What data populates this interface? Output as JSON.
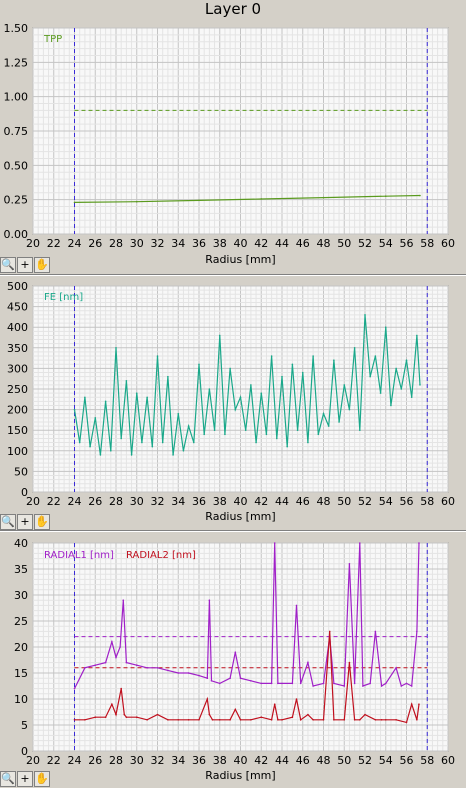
{
  "window": {
    "title": "Layer 0"
  },
  "toolbar": {
    "zoom_icon": "zoom-icon",
    "crosshair_icon": "crosshair-icon",
    "pan_icon": "hand-pan-icon",
    "crosshair_glyph": "+"
  },
  "colors": {
    "tpp": "#5a9a1e",
    "fe": "#1aa88a",
    "radial1": "#a020c8",
    "radial2": "#c0101e",
    "marker": "#3a2ad8",
    "grid_minor": "#e4e4e4",
    "grid_major": "#c4c4c4"
  },
  "chart_data": [
    {
      "type": "line",
      "xlabel": "Radius [mm]",
      "xlim": [
        20,
        60
      ],
      "ylim": [
        0,
        1.5
      ],
      "x_ticks": [
        20,
        22,
        24,
        26,
        28,
        30,
        32,
        34,
        36,
        38,
        40,
        42,
        44,
        46,
        48,
        50,
        52,
        54,
        56,
        58,
        60
      ],
      "y_ticks": [
        "0.00",
        "0.25",
        "0.50",
        "0.75",
        "1.00",
        "1.25",
        "1.50"
      ],
      "vertical_markers": [
        24,
        58
      ],
      "threshold": 0.9,
      "series": [
        {
          "name": "TPP",
          "x": [
            24,
            30,
            36,
            42,
            48,
            54,
            57.3
          ],
          "values": [
            0.23,
            0.235,
            0.245,
            0.255,
            0.265,
            0.275,
            0.28
          ]
        }
      ]
    },
    {
      "type": "line",
      "xlabel": "Radius [mm]",
      "xlim": [
        20,
        60
      ],
      "ylim": [
        0,
        500
      ],
      "x_ticks": [
        20,
        22,
        24,
        26,
        28,
        30,
        32,
        34,
        36,
        38,
        40,
        42,
        44,
        46,
        48,
        50,
        52,
        54,
        56,
        58,
        60
      ],
      "y_ticks": [
        "0",
        "50",
        "100",
        "150",
        "200",
        "250",
        "300",
        "350",
        "400",
        "450",
        "500"
      ],
      "vertical_markers": [
        24,
        58
      ],
      "series": [
        {
          "name": "FE [nm]",
          "x": [
            24,
            24.5,
            25,
            25.5,
            26,
            26.5,
            27,
            27.5,
            28,
            28.5,
            29,
            29.5,
            30,
            30.5,
            31,
            31.5,
            32,
            32.5,
            33,
            33.5,
            34,
            34.5,
            35,
            35.5,
            36,
            36.5,
            37,
            37.5,
            38,
            38.5,
            39,
            39.5,
            40,
            40.5,
            41,
            41.5,
            42,
            42.5,
            43,
            43.5,
            44,
            44.5,
            45,
            45.5,
            46,
            46.5,
            47,
            47.5,
            48,
            48.5,
            49,
            49.5,
            50,
            50.5,
            51,
            51.5,
            52,
            52.5,
            53,
            53.5,
            54,
            54.5,
            55,
            55.5,
            56,
            56.5,
            57,
            57.3
          ],
          "values": [
            200,
            120,
            230,
            110,
            180,
            90,
            220,
            100,
            350,
            130,
            270,
            90,
            240,
            120,
            230,
            110,
            330,
            120,
            280,
            90,
            190,
            100,
            160,
            120,
            310,
            140,
            250,
            150,
            380,
            140,
            300,
            200,
            230,
            150,
            260,
            120,
            240,
            140,
            330,
            130,
            280,
            110,
            310,
            150,
            290,
            120,
            330,
            140,
            190,
            160,
            320,
            170,
            260,
            200,
            350,
            150,
            430,
            280,
            330,
            240,
            400,
            210,
            300,
            250,
            320,
            230,
            380,
            260
          ]
        }
      ]
    },
    {
      "type": "line",
      "xlabel": "Radius [mm]",
      "xlim": [
        20,
        60
      ],
      "ylim": [
        0,
        40
      ],
      "x_ticks": [
        20,
        22,
        24,
        26,
        28,
        30,
        32,
        34,
        36,
        38,
        40,
        42,
        44,
        46,
        48,
        50,
        52,
        54,
        56,
        58,
        60
      ],
      "y_ticks": [
        "0",
        "5",
        "10",
        "15",
        "20",
        "25",
        "30",
        "35",
        "40"
      ],
      "vertical_markers": [
        24,
        58
      ],
      "thresholds": [
        22,
        16
      ],
      "series": [
        {
          "name": "RADIAL1 [nm]",
          "x": [
            24,
            25,
            26,
            27,
            27.6,
            28,
            28.4,
            28.7,
            29,
            30,
            31,
            32,
            33,
            34,
            35,
            36,
            36.8,
            37,
            37.2,
            38,
            39,
            39.5,
            40,
            41,
            42,
            43,
            43.3,
            43.6,
            44,
            45,
            45.4,
            45.8,
            46.5,
            47,
            48,
            48.6,
            49,
            50,
            50.5,
            51,
            51.5,
            51.8,
            52.5,
            53,
            53.6,
            54,
            55,
            55.5,
            56,
            56.5,
            57,
            57.2
          ],
          "values": [
            12,
            16,
            16.5,
            17,
            21,
            18,
            20,
            29,
            17,
            16.5,
            16,
            16,
            15.5,
            15,
            15,
            14.5,
            14,
            29,
            13.5,
            13,
            14,
            19,
            14,
            13.5,
            13,
            13,
            40,
            13,
            13,
            13,
            28,
            13,
            17,
            12.5,
            13,
            22,
            13,
            12.5,
            36,
            13,
            40,
            12.5,
            13,
            23,
            12.5,
            13,
            16,
            12.5,
            13,
            12.5,
            23,
            40
          ]
        },
        {
          "name": "RADIAL2 [nm]",
          "x": [
            24,
            25,
            26,
            27,
            27.6,
            28,
            28.5,
            28.8,
            29,
            30,
            31,
            32,
            33,
            34,
            35,
            36,
            36.8,
            37,
            37.3,
            38,
            39,
            39.5,
            40,
            41,
            42,
            43,
            43.3,
            43.6,
            44,
            45,
            45.4,
            45.8,
            46.5,
            47,
            48,
            48.6,
            49,
            50,
            50.5,
            51,
            51.5,
            52,
            53,
            53.6,
            54,
            55,
            56,
            56.5,
            57,
            57.2
          ],
          "values": [
            6,
            6,
            6.5,
            6.5,
            9,
            7,
            12,
            7,
            6.5,
            6.5,
            6,
            7,
            6,
            6,
            6,
            6,
            10,
            7,
            6,
            6,
            6,
            8,
            6,
            6,
            6.5,
            6,
            9,
            6,
            6,
            6.5,
            10,
            6,
            7,
            6,
            6,
            23,
            6,
            6,
            17,
            6,
            6,
            7,
            6,
            6,
            6,
            6,
            5.5,
            9,
            6,
            9
          ]
        }
      ]
    }
  ]
}
